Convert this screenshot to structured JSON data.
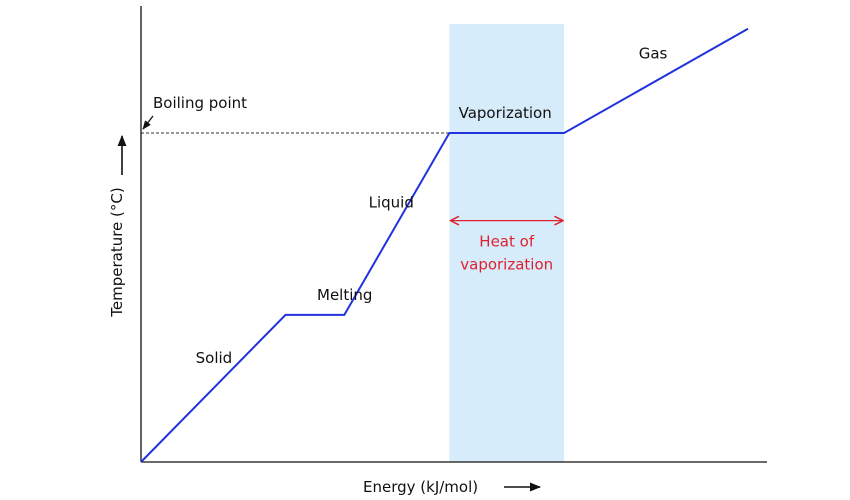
{
  "chart_data": {
    "type": "line",
    "xlabel": "Energy (kJ/mol)",
    "ylabel": "Temperature (°C)",
    "xlim": [
      0,
      100
    ],
    "ylim": [
      0,
      100
    ],
    "grid": false,
    "series": [
      {
        "points": [
          [
            0,
            0
          ],
          [
            23.8,
            44.5
          ],
          [
            33.5,
            44.5
          ],
          [
            50.8,
            99.5
          ],
          [
            69.7,
            99.5
          ],
          [
            100,
            131
          ]
        ]
      }
    ],
    "phase_labels": [
      {
        "text": "Solid",
        "x": 9,
        "y": 30
      },
      {
        "text": "Melting",
        "x": 29,
        "y": 49
      },
      {
        "text": "Liquid",
        "x": 37.5,
        "y": 77
      },
      {
        "text": "Vaporization",
        "x": 60,
        "y": 104
      },
      {
        "text": "Gas",
        "x": 82,
        "y": 122
      }
    ],
    "vaporization_band": [
      50.8,
      69.7
    ],
    "boiling_point": {
      "label": "Boiling point",
      "y": 99.5
    },
    "heat_of_vaporization": {
      "line1": "Heat of",
      "line2": "vaporization",
      "x": [
        50.8,
        69.7
      ],
      "y": 73
    },
    "colors": {
      "line": "#2233dd",
      "band": "#d6ecfa",
      "annotation": "#e0212e",
      "axis": "#111111"
    }
  }
}
